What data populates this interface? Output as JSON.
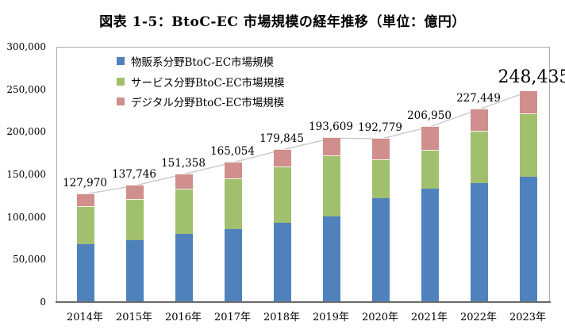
{
  "title": "図表 1-5：BtoC-EC 市場規模の経年推移（単位：億円）",
  "colors": {
    "bar_blue": "#4F81BD",
    "bar_green": "#A1C06E",
    "bar_pink": "#D08E8C",
    "total_line": "#C9C9C9",
    "plot_border": "#ABABAB",
    "axis_line": "#6A6A6A"
  },
  "chart_data": {
    "type": "bar",
    "variant": "stacked-column-with-total-line",
    "title": "図表 1-5：BtoC-EC 市場規模の経年推移（単位：億円）",
    "unit": "億円",
    "categories": [
      "2014年",
      "2015年",
      "2016年",
      "2017年",
      "2018年",
      "2019年",
      "2020年",
      "2021年",
      "2022年",
      "2023年"
    ],
    "series": [
      {
        "name": "物販系分野BtoC-EC市場規模",
        "color": "#4F81BD",
        "values": [
          68043,
          72398,
          80043,
          86008,
          92992,
          100515,
          122333,
          132865,
          139997,
          146760
        ]
      },
      {
        "name": "サービス分野BtoC-EC市場規模",
        "color": "#A1C06E",
        "values": [
          44816,
          49014,
          53532,
          59568,
          66471,
          71672,
          45832,
          46424,
          61477,
          75169
        ]
      },
      {
        "name": "デジタル分野BtoC-EC市場規模",
        "color": "#D08E8C",
        "values": [
          15111,
          16334,
          17783,
          19478,
          20382,
          21422,
          24614,
          27661,
          25974,
          26506
        ]
      }
    ],
    "total_labels": [
      "127,970",
      "137,746",
      "151,358",
      "165,054",
      "179,845",
      "193,609",
      "192,779",
      "206,950",
      "227,449",
      "248,435"
    ],
    "emphasized_total_label": "248,435",
    "y_axis": {
      "min": 0,
      "max": 300000,
      "tick_step": 50000,
      "tick_labels": [
        "0",
        "50,000",
        "100,000",
        "150,000",
        "200,000",
        "250,000",
        "300,000"
      ]
    },
    "grid": false,
    "legend_position": "top-left-inside",
    "total_line": true
  }
}
